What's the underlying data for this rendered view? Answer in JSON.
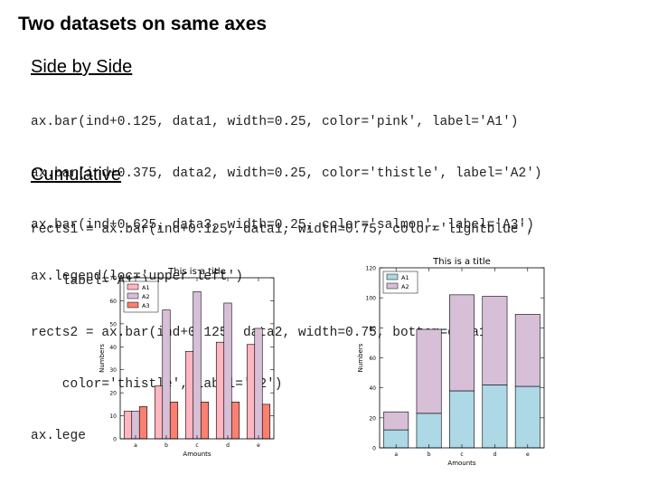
{
  "slide": {
    "title": "Two datasets on same axes",
    "section1": {
      "heading": "Side by Side",
      "lines": [
        "ax.bar(ind+0.125, data1, width=0.25, color='pink', label='A1')",
        "ax.bar(ind+0.375, data2, width=0.25, color='thistle', label='A2')",
        "ax.bar(ind+0.625, data3, width=0.25, color='salmon', label='A3')",
        "ax.legend(loc='upper left')"
      ]
    },
    "section2": {
      "heading": "Cumulative",
      "lines": [
        "rects1 = ax.bar(ind+0.125, data1, width=0.75, color='lightblue',",
        "    label='A1')",
        "rects2 = ax.bar(ind+0.125, data2, width=0.75, bottom=data1,",
        "    color='thistle', label='A2')",
        "ax.lege"
      ]
    }
  },
  "colors": {
    "pink": "#ffb6c1",
    "thistle": "#d8bfd8",
    "salmon": "#fa8072",
    "lightblue": "#add8e6"
  },
  "chart_data": [
    {
      "type": "bar",
      "title": "This is a title",
      "xlabel": "Amounts",
      "ylabel": "Numbers",
      "categories": [
        "a",
        "b",
        "c",
        "d",
        "e"
      ],
      "ylim": [
        0,
        70
      ],
      "yticks": [
        0,
        10,
        20,
        30,
        40,
        50,
        60,
        70
      ],
      "legend": "upper left",
      "series": [
        {
          "name": "A1",
          "values": [
            12,
            23,
            38,
            42,
            41
          ],
          "color": "#ffb6c1"
        },
        {
          "name": "A2",
          "values": [
            12,
            56,
            64,
            59,
            48
          ],
          "color": "#d8bfd8"
        },
        {
          "name": "A3",
          "values": [
            14,
            16,
            16,
            16,
            15
          ],
          "color": "#fa8072"
        }
      ]
    },
    {
      "type": "bar",
      "stacked": true,
      "title": "This is a title",
      "xlabel": "Amounts",
      "ylabel": "Numbers",
      "categories": [
        "a",
        "b",
        "c",
        "d",
        "e"
      ],
      "ylim": [
        0,
        120
      ],
      "yticks": [
        0,
        20,
        40,
        60,
        80,
        100,
        120
      ],
      "legend": "upper left",
      "series": [
        {
          "name": "A1",
          "values": [
            12,
            23,
            38,
            42,
            41
          ],
          "color": "#add8e6"
        },
        {
          "name": "A2",
          "values": [
            12,
            56,
            64,
            59,
            48
          ],
          "color": "#d8bfd8"
        }
      ]
    }
  ]
}
